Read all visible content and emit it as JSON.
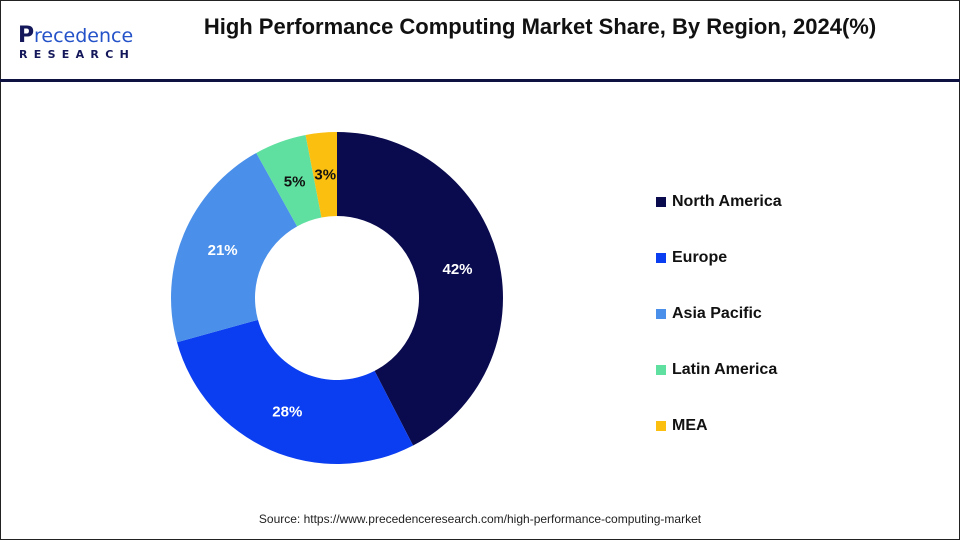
{
  "logo": {
    "line1": "Precedence",
    "line2": "RESEARCH"
  },
  "chart_data": {
    "type": "pie",
    "subtype": "donut",
    "title": "High Performance Computing Market Share, By Region, 2024(%)",
    "categories": [
      "North America",
      "Europe",
      "Asia Pacific",
      "Latin America",
      "MEA"
    ],
    "values": [
      42,
      28,
      21,
      5,
      3
    ],
    "data_labels": [
      "42%",
      "28%",
      "21%",
      "5%",
      "3%"
    ],
    "colors": [
      "#0a0a4f",
      "#0b3ef0",
      "#4a90ea",
      "#5fe0a0",
      "#fbbf0f"
    ],
    "label_colors": [
      "#ffffff",
      "#ffffff",
      "#ffffff",
      "#111111",
      "#111111"
    ],
    "legend_position": "right"
  },
  "source": "Source: https://www.precedenceresearch.com/high-performance-computing-market"
}
